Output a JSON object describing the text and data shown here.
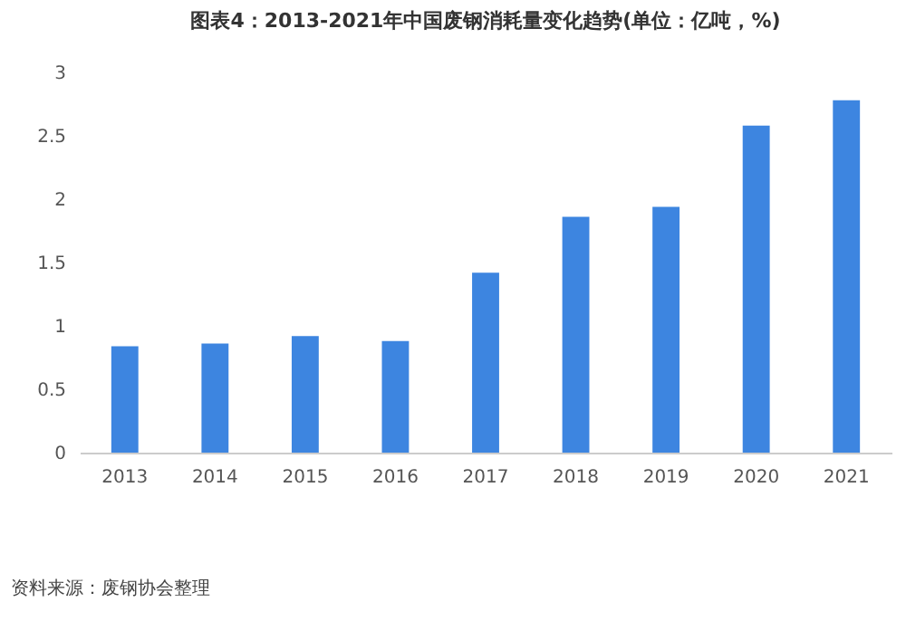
{
  "chart_data": {
    "type": "bar",
    "title": "图表4：2013-2021年中国废钢消耗量变化趋势(单位：亿吨，%)",
    "categories": [
      "2013",
      "2014",
      "2015",
      "2016",
      "2017",
      "2018",
      "2019",
      "2020",
      "2021"
    ],
    "values": [
      0.84,
      0.86,
      0.92,
      0.88,
      1.42,
      1.86,
      1.94,
      2.58,
      2.78
    ],
    "color": "#3d85e0",
    "ylim": [
      0,
      3
    ],
    "yticks": [
      0,
      0.5,
      1,
      1.5,
      2,
      2.5,
      3
    ],
    "grid": false,
    "annotations": [
      "资料来源：废钢协会整理"
    ]
  }
}
